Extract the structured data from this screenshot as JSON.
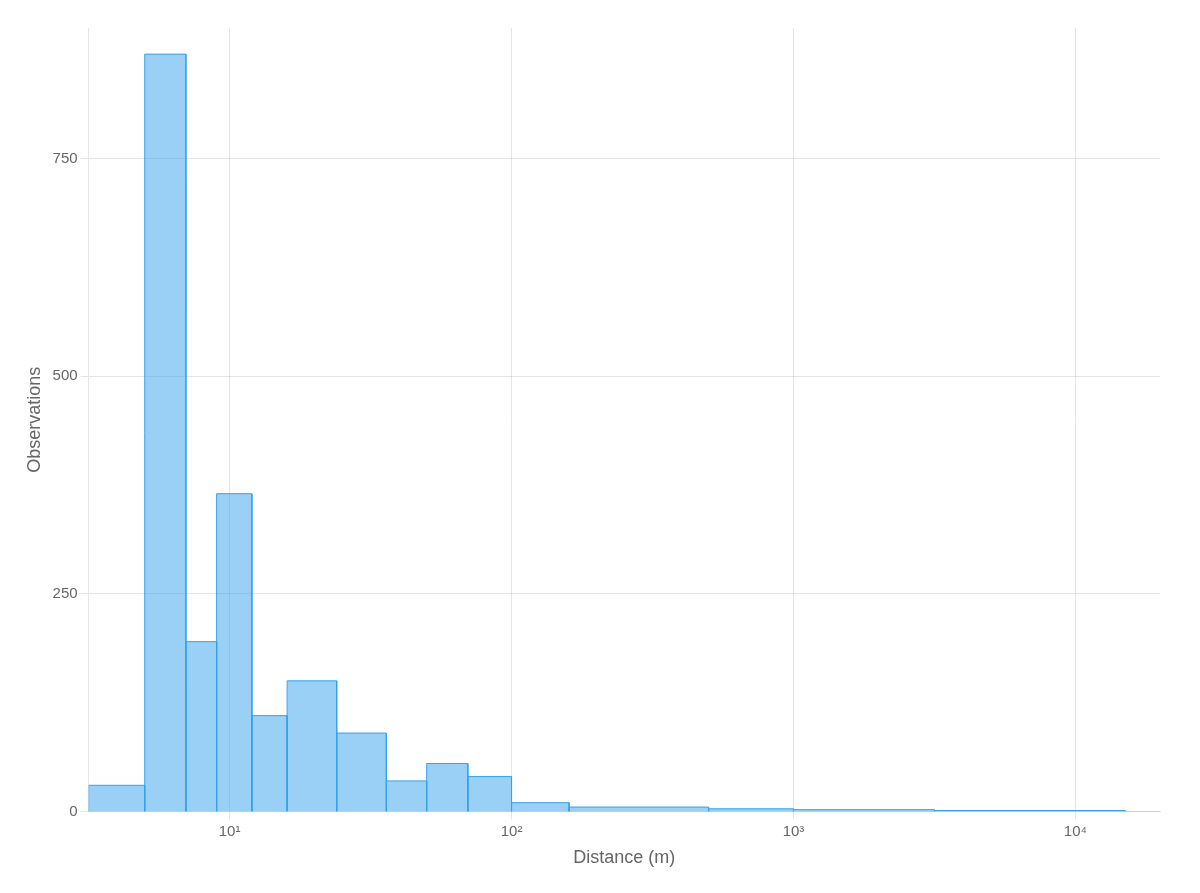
{
  "chart_data": {
    "type": "histogram",
    "xlabel": "Distance (m)",
    "ylabel": "Observations",
    "bins": [
      3.1622776601683795,
      5.00034535,
      6.99841996,
      8.994975816,
      11.99499303,
      15.99557971,
      23.98832919,
      35.97493352,
      50.0034535,
      69.9841996,
      100,
      159.9557971,
      500.034535,
      1000,
      3162.2776601683795,
      14996.84836
    ],
    "values": [
      30,
      870,
      195,
      365,
      110,
      150,
      90,
      35,
      55,
      40,
      10,
      5,
      3,
      2,
      1
    ],
    "log": "x",
    "xlim": [
      3.1622776601683795,
      19952.623149688792
    ],
    "xticks": [
      {
        "value": 10,
        "label": "10¹"
      },
      {
        "value": 100,
        "label": "10²"
      },
      {
        "value": 1000,
        "label": "10³"
      },
      {
        "value": 10000,
        "label": "10⁴"
      }
    ],
    "ylim": [
      0,
      900
    ],
    "yticks": [
      0,
      250,
      500,
      750
    ],
    "grid": true
  }
}
